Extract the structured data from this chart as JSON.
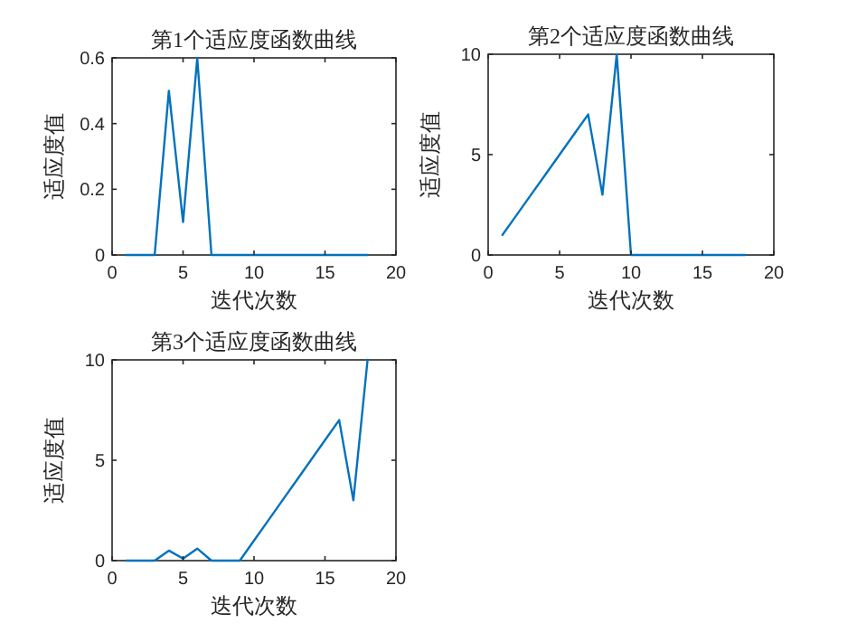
{
  "chart_data": [
    {
      "type": "line",
      "title": "第1个适应度函数曲线",
      "xlabel": "迭代次数",
      "ylabel": "适应度值",
      "x": [
        1,
        2,
        3,
        4,
        5,
        6,
        7,
        8,
        9,
        10,
        11,
        12,
        13,
        14,
        15,
        16,
        17,
        18
      ],
      "series": [
        {
          "color": "#0072bd",
          "values": [
            0,
            0,
            0,
            0.5,
            0.1,
            0.6,
            0,
            0,
            0,
            0,
            0,
            0,
            0,
            0,
            0,
            0,
            0,
            0
          ]
        }
      ],
      "xlim": [
        0,
        20
      ],
      "xticks": [
        0,
        5,
        10,
        15,
        20
      ],
      "ylim": [
        0,
        0.6
      ],
      "yticks": [
        0,
        0.2,
        0.4,
        0.6
      ]
    },
    {
      "type": "line",
      "title": "第2个适应度函数曲线",
      "xlabel": "迭代次数",
      "ylabel": "适应度值",
      "x": [
        1,
        2,
        3,
        4,
        5,
        6,
        7,
        8,
        9,
        10,
        11,
        12,
        13,
        14,
        15,
        16,
        17,
        18
      ],
      "series": [
        {
          "color": "#0072bd",
          "values": [
            1,
            2,
            3,
            4,
            5,
            6,
            7,
            3,
            10,
            0,
            0,
            0,
            0,
            0,
            0,
            0,
            0,
            0
          ]
        }
      ],
      "xlim": [
        0,
        20
      ],
      "xticks": [
        0,
        5,
        10,
        15,
        20
      ],
      "ylim": [
        0,
        10
      ],
      "yticks": [
        0,
        5,
        10
      ]
    },
    {
      "type": "line",
      "title": "第3个适应度函数曲线",
      "xlabel": "迭代次数",
      "ylabel": "适应度值",
      "x": [
        1,
        2,
        3,
        4,
        5,
        6,
        7,
        8,
        9,
        10,
        11,
        12,
        13,
        14,
        15,
        16,
        17,
        18
      ],
      "series": [
        {
          "color": "#0072bd",
          "values": [
            0,
            0,
            0,
            0.5,
            0.1,
            0.6,
            0,
            0,
            0,
            1,
            2,
            3,
            4,
            5,
            6,
            7,
            3,
            10
          ]
        }
      ],
      "xlim": [
        0,
        20
      ],
      "xticks": [
        0,
        5,
        10,
        15,
        20
      ],
      "ylim": [
        0,
        10
      ],
      "yticks": [
        0,
        5,
        10
      ]
    }
  ]
}
